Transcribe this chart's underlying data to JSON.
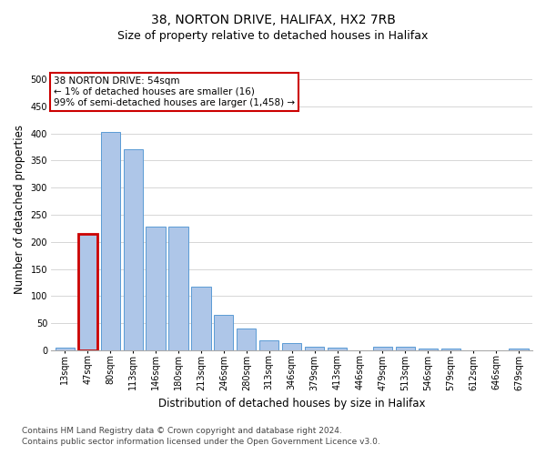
{
  "title_line1": "38, NORTON DRIVE, HALIFAX, HX2 7RB",
  "title_line2": "Size of property relative to detached houses in Halifax",
  "xlabel": "Distribution of detached houses by size in Halifax",
  "ylabel": "Number of detached properties",
  "categories": [
    "13sqm",
    "47sqm",
    "80sqm",
    "113sqm",
    "146sqm",
    "180sqm",
    "213sqm",
    "246sqm",
    "280sqm",
    "313sqm",
    "346sqm",
    "379sqm",
    "413sqm",
    "446sqm",
    "479sqm",
    "513sqm",
    "546sqm",
    "579sqm",
    "612sqm",
    "646sqm",
    "679sqm"
  ],
  "values": [
    5,
    215,
    403,
    370,
    228,
    228,
    118,
    65,
    40,
    18,
    13,
    7,
    5,
    0,
    7,
    7,
    3,
    3,
    0,
    0,
    3
  ],
  "bar_color": "#aec6e8",
  "bar_edge_color": "#5b9bd5",
  "highlight_index": 1,
  "highlight_bar_edge_color": "#cc0000",
  "highlight_bar_edge_width": 2.0,
  "annotation_text": "38 NORTON DRIVE: 54sqm\n← 1% of detached houses are smaller (16)\n99% of semi-detached houses are larger (1,458) →",
  "annotation_box_edge_color": "#cc0000",
  "ylim": [
    0,
    520
  ],
  "yticks": [
    0,
    50,
    100,
    150,
    200,
    250,
    300,
    350,
    400,
    450,
    500
  ],
  "footnote_line1": "Contains HM Land Registry data © Crown copyright and database right 2024.",
  "footnote_line2": "Contains public sector information licensed under the Open Government Licence v3.0.",
  "background_color": "#ffffff",
  "grid_color": "#d0d0d0",
  "title_fontsize": 10,
  "subtitle_fontsize": 9,
  "axis_label_fontsize": 8.5,
  "tick_fontsize": 7,
  "annotation_fontsize": 7.5,
  "footnote_fontsize": 6.5
}
